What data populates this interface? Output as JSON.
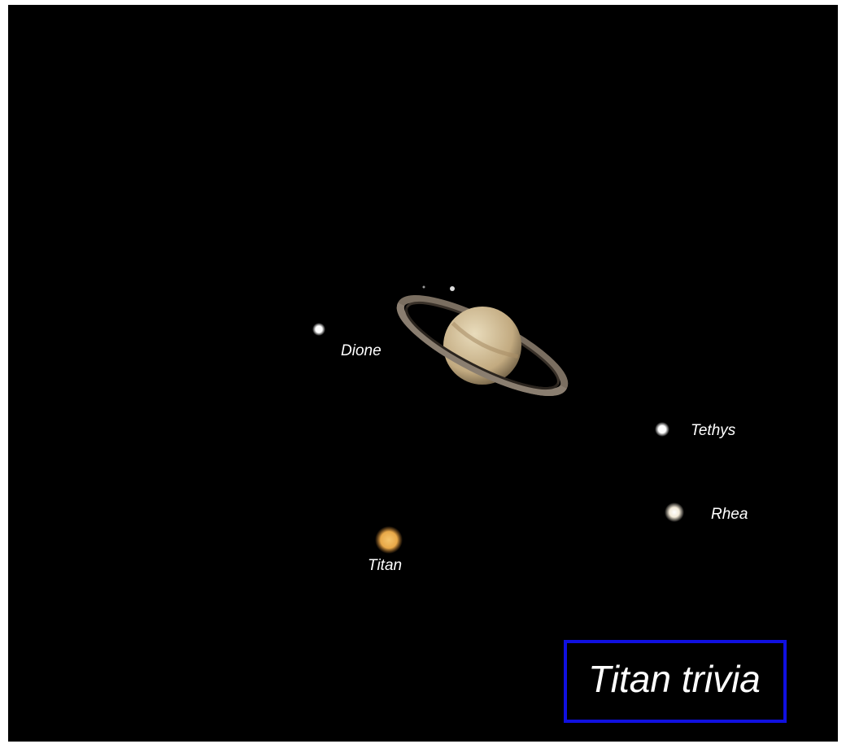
{
  "moons": [
    {
      "label": "Dione"
    },
    {
      "label": "Tethys"
    },
    {
      "label": "Rhea"
    },
    {
      "label": "Titan"
    }
  ],
  "button": {
    "label": "Titan trivia"
  }
}
